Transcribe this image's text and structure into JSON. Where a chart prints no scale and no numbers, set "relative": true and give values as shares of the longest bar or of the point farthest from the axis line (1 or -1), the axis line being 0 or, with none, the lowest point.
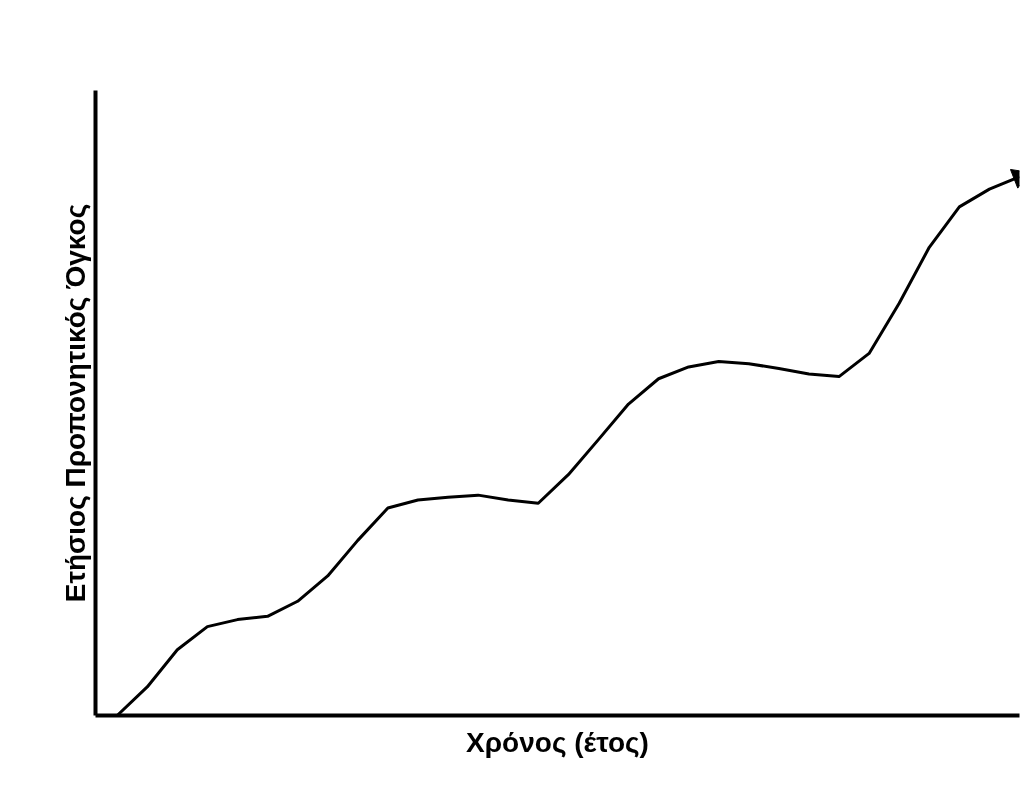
{
  "chart_data": {
    "type": "line",
    "relative": true,
    "xlabel": "Χρόνος (έτος)",
    "ylabel": "Ετήσιος Προπονητικός Όγκος",
    "categories": [
      null,
      null,
      null,
      null,
      null,
      null,
      null,
      null,
      null,
      null,
      null,
      null,
      null,
      null,
      null,
      null,
      null,
      null,
      null,
      null,
      null,
      null,
      null,
      null,
      null,
      null,
      null,
      null,
      null,
      null,
      null
    ],
    "series": [
      {
        "color": "#000000",
        "values": [
          0,
          0.053,
          0.122,
          0.165,
          0.178,
          0.184,
          0.212,
          0.259,
          0.325,
          0.385,
          0.4,
          0.405,
          0.409,
          0.4,
          0.394,
          0.447,
          0.512,
          0.578,
          0.625,
          0.647,
          0.657,
          0.653,
          0.644,
          0.634,
          0.629,
          0.672,
          0.765,
          0.869,
          0.944,
          0.977,
          1
        ]
      }
    ],
    "grid": false,
    "marker": "none",
    "line_style": "solid"
  }
}
